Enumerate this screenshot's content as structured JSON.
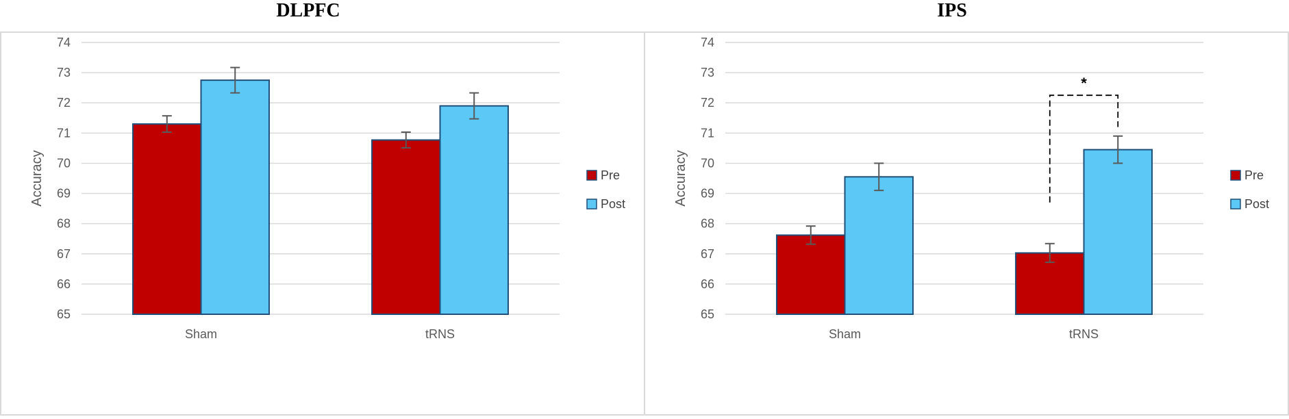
{
  "colors": {
    "pre": "#c00000",
    "post": "#5bc8f5",
    "bar_edge": "#1f4e79",
    "grid": "#d9d9d9",
    "error": "#595959"
  },
  "chart_data": [
    {
      "type": "bar",
      "title": "DLPFC",
      "ylabel": "Accuracy",
      "xlabel": "",
      "categories": [
        "Sham",
        "tRNS"
      ],
      "ylim": [
        65,
        74
      ],
      "yticks": [
        65,
        66,
        67,
        68,
        69,
        70,
        71,
        72,
        73,
        74
      ],
      "grid": true,
      "legend_position": "right",
      "series": [
        {
          "name": "Pre",
          "values": [
            71.3,
            70.77
          ],
          "errors": [
            0.27,
            0.26
          ]
        },
        {
          "name": "Post",
          "values": [
            72.75,
            71.9
          ],
          "errors": [
            0.42,
            0.43
          ]
        }
      ],
      "annotations": []
    },
    {
      "type": "bar",
      "title": "IPS",
      "ylabel": "Accuracy",
      "xlabel": "",
      "categories": [
        "Sham",
        "tRNS"
      ],
      "ylim": [
        65,
        74
      ],
      "yticks": [
        65,
        66,
        67,
        68,
        69,
        70,
        71,
        72,
        73,
        74
      ],
      "grid": true,
      "legend_position": "right",
      "series": [
        {
          "name": "Pre",
          "values": [
            67.62,
            67.03
          ],
          "errors": [
            0.3,
            0.31
          ]
        },
        {
          "name": "Post",
          "values": [
            69.55,
            70.45
          ],
          "errors": [
            0.45,
            0.45
          ]
        }
      ],
      "annotations": [
        {
          "type": "significance",
          "text": "*",
          "category": "tRNS",
          "between": [
            "Pre",
            "Post"
          ],
          "bracket_y": 72.25,
          "left_end": 68.7,
          "right_end": 71.2
        }
      ]
    }
  ]
}
